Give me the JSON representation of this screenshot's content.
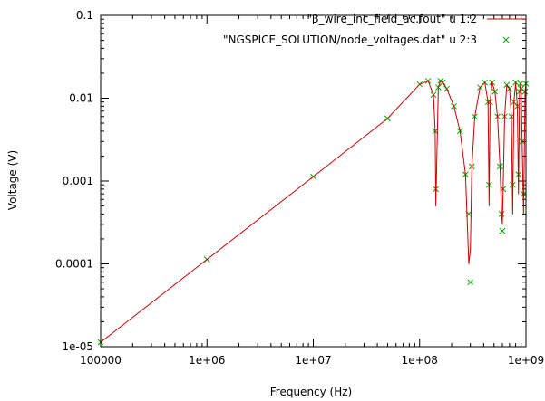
{
  "chart_data": {
    "type": "line",
    "xlabel": "Frequency (Hz)",
    "ylabel": "Voltage (V)",
    "xscale": "log",
    "yscale": "log",
    "xlim": [
      100000,
      1000000000
    ],
    "ylim": [
      1e-05,
      0.1
    ],
    "grid": false,
    "legend_position": "top-right",
    "x_ticks": [
      {
        "value": 100000,
        "label": "100000"
      },
      {
        "value": 1000000,
        "label": "1e+06"
      },
      {
        "value": 10000000,
        "label": "1e+07"
      },
      {
        "value": 100000000,
        "label": "1e+08"
      },
      {
        "value": 1000000000,
        "label": "1e+09"
      }
    ],
    "y_ticks": [
      {
        "value": 1e-05,
        "label": "1e-05"
      },
      {
        "value": 0.0001,
        "label": "0.0001"
      },
      {
        "value": 0.001,
        "label": "0.001"
      },
      {
        "value": 0.01,
        "label": "0.01"
      },
      {
        "value": 0.1,
        "label": "0.1"
      }
    ],
    "series": [
      {
        "name": "\"3_wire_inc_field_ac.fout\" u 1:2",
        "style": "line",
        "color": "#cc0000",
        "x": [
          100000,
          1000000,
          10000000,
          50000000,
          100000000,
          120000000,
          135000000,
          140000000,
          142000000,
          150000000,
          157000000,
          165000000,
          180000000,
          210000000,
          240000000,
          270000000,
          290000000,
          300000000,
          310000000,
          330000000,
          370000000,
          410000000,
          440000000,
          450000000,
          460000000,
          480000000,
          510000000,
          540000000,
          570000000,
          590000000,
          600000000,
          610000000,
          630000000,
          660000000,
          700000000,
          730000000,
          750000000,
          770000000,
          800000000,
          830000000,
          850000000,
          870000000,
          890000000,
          900000000,
          920000000,
          950000000,
          980000000,
          1000000000
        ],
        "y": [
          1.13e-05,
          0.000113,
          0.00113,
          0.0057,
          0.0147,
          0.0162,
          0.011,
          0.004,
          0.0005,
          0.0135,
          0.0162,
          0.0155,
          0.013,
          0.008,
          0.004,
          0.0012,
          0.0001,
          0.00015,
          0.0015,
          0.006,
          0.0135,
          0.0155,
          0.009,
          0.0005,
          0.009,
          0.0155,
          0.012,
          0.006,
          0.0015,
          0.0004,
          0.0003,
          0.0008,
          0.006,
          0.0145,
          0.013,
          0.006,
          0.0004,
          0.009,
          0.0155,
          0.008,
          0.0007,
          0.012,
          0.015,
          0.013,
          0.003,
          0.0004,
          0.012,
          0.015
        ]
      },
      {
        "name": "\"NGSPICE_SOLUTION/node_voltages.dat\" u 2:3",
        "style": "markers",
        "marker": "x",
        "color": "#00aa00",
        "x": [
          100000,
          1000000,
          10000000,
          50000000,
          100000000,
          120000000,
          135000000,
          140000000,
          142000000,
          150000000,
          157000000,
          165000000,
          180000000,
          210000000,
          240000000,
          270000000,
          290000000,
          300000000,
          310000000,
          330000000,
          370000000,
          410000000,
          440000000,
          450000000,
          460000000,
          480000000,
          510000000,
          540000000,
          570000000,
          590000000,
          600000000,
          610000000,
          630000000,
          660000000,
          700000000,
          730000000,
          750000000,
          770000000,
          800000000,
          830000000,
          850000000,
          870000000,
          890000000,
          900000000,
          920000000,
          950000000,
          980000000,
          1000000000
        ],
        "y": [
          1.13e-05,
          0.000113,
          0.00113,
          0.0057,
          0.0147,
          0.0162,
          0.011,
          0.004,
          0.0008,
          0.0135,
          0.0162,
          0.0155,
          0.013,
          0.008,
          0.004,
          0.0012,
          0.0004,
          6e-05,
          0.0015,
          0.006,
          0.0135,
          0.0155,
          0.009,
          0.0009,
          0.009,
          0.0155,
          0.012,
          0.006,
          0.0015,
          0.0004,
          0.00025,
          0.0008,
          0.006,
          0.0145,
          0.013,
          0.006,
          0.0009,
          0.009,
          0.0155,
          0.008,
          0.0012,
          0.012,
          0.015,
          0.013,
          0.003,
          0.0007,
          0.012,
          0.015
        ]
      }
    ]
  }
}
